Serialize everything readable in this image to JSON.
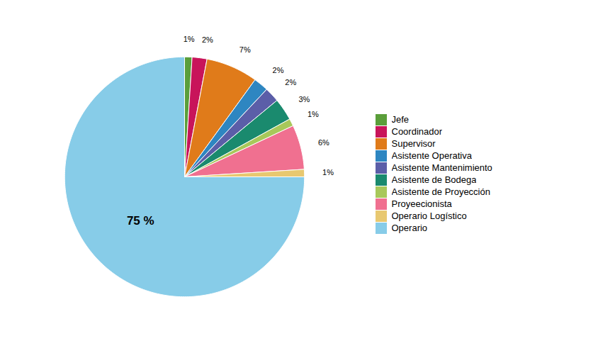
{
  "chart_data": {
    "type": "pie",
    "categories": [
      "Jefe",
      "Coordinador",
      "Supervisor",
      "Asistente Operativa",
      "Asistente Mantenimiento",
      "Asistente de Bodega",
      "Asistente de Proyección",
      "Proyeecionista",
      "Operario Logístico",
      "Operario"
    ],
    "values": [
      1,
      2,
      7,
      2,
      2,
      3,
      1,
      6,
      1,
      75
    ],
    "value_labels": [
      "1%",
      "2%",
      "7%",
      "2%",
      "2%",
      "3%",
      "1%",
      "6%",
      "1%",
      "75 %"
    ],
    "colors": [
      "#5a9e3a",
      "#c8145a",
      "#e07b1a",
      "#2e86c1",
      "#5b5ea8",
      "#1a8a6e",
      "#a8c85a",
      "#f07090",
      "#e8c870",
      "#87cce8"
    ],
    "data_labels": true,
    "legend": "right"
  }
}
